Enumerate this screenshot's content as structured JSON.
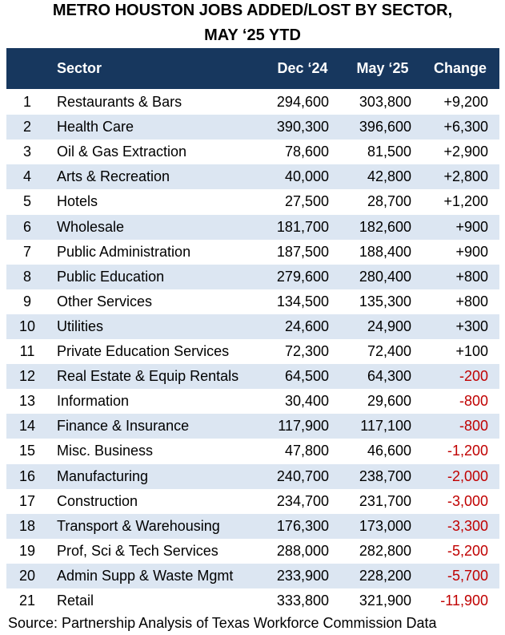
{
  "title": [
    "METRO HOUSTON JOBS ADDED/LOST BY SECTOR,",
    "MAY ‘25 YTD"
  ],
  "table": {
    "header": [
      "",
      "Sector",
      "Dec ‘24",
      "May ‘25",
      "Change"
    ],
    "rows": [
      [
        "1",
        "Restaurants & Bars",
        "294,600",
        "303,800",
        "+9,200"
      ],
      [
        "2",
        "Health Care",
        "390,300",
        "396,600",
        "+6,300"
      ],
      [
        "3",
        "Oil & Gas Extraction",
        "78,600",
        "81,500",
        "+2,900"
      ],
      [
        "4",
        "Arts & Recreation",
        "40,000",
        "42,800",
        "+2,800"
      ],
      [
        "5",
        "Hotels",
        "27,500",
        "28,700",
        "+1,200"
      ],
      [
        "6",
        "Wholesale",
        "181,700",
        "182,600",
        "+900"
      ],
      [
        "7",
        "Public Administration",
        "187,500",
        "188,400",
        "+900"
      ],
      [
        "8",
        "Public Education",
        "279,600",
        "280,400",
        "+800"
      ],
      [
        "9",
        "Other Services",
        "134,500",
        "135,300",
        "+800"
      ],
      [
        "10",
        "Utilities",
        "24,600",
        "24,900",
        "+300"
      ],
      [
        "11",
        "Private Education Services",
        "72,300",
        "72,400",
        "+100"
      ],
      [
        "12",
        "Real Estate & Equip Rentals",
        "64,500",
        "64,300",
        "-200"
      ],
      [
        "13",
        "Information",
        "30,400",
        "29,600",
        "-800"
      ],
      [
        "14",
        "Finance & Insurance",
        "117,900",
        "117,100",
        "-800"
      ],
      [
        "15",
        "Misc. Business",
        "47,800",
        "46,600",
        "-1,200"
      ],
      [
        "16",
        "Manufacturing",
        "240,700",
        "238,700",
        "-2,000"
      ],
      [
        "17",
        "Construction",
        "234,700",
        "231,700",
        "-3,000"
      ],
      [
        "18",
        "Transport & Warehousing",
        "176,300",
        "173,000",
        "-3,300"
      ],
      [
        "19",
        "Prof, Sci & Tech Services",
        "288,000",
        "282,800",
        "-5,200"
      ],
      [
        "20",
        "Admin Supp & Waste Mgmt",
        "233,900",
        "228,200",
        "-5,700"
      ],
      [
        "21",
        "Retail",
        "333,800",
        "321,900",
        "-11,900"
      ]
    ]
  },
  "source": "Source: Partnership Analysis of Texas Workforce Commission Data"
}
